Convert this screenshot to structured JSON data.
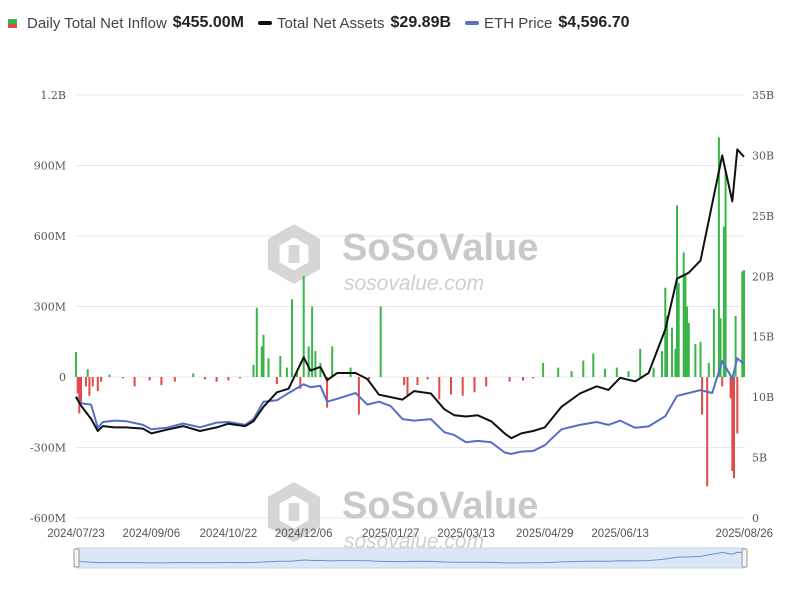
{
  "legend": {
    "inflow_label": "Daily Total Net Inflow",
    "inflow_value": "$455.00M",
    "assets_label": "Total Net Assets",
    "assets_value": "$29.89B",
    "eth_label": "ETH Price",
    "eth_value": "$4,596.70"
  },
  "watermark": {
    "brand": "SoSoValue",
    "site": "sosovalue.com"
  },
  "colors": {
    "inflow_positive": "#39b54a",
    "inflow_negative": "#e04a4a",
    "assets_line": "#111111",
    "eth_line": "#5470c6",
    "navigator_fill": "#dbe7f7",
    "navigator_line": "#6d8fd0",
    "grid": "#e8e8e8"
  },
  "chart_data": {
    "type": "bar+line",
    "x_range": [
      "2024/07/23",
      "2025/08/26"
    ],
    "x_tick_labels": [
      "2024/07/23",
      "2024/09/06",
      "2024/10/22",
      "2024/12/06",
      "2025/01/27",
      "2025/03/13",
      "2025/04/29",
      "2025/06/13",
      "2025/08/26"
    ],
    "left_axis": {
      "unit": "USD",
      "ylim": [
        -600,
        1200
      ],
      "tick_labels": [
        "-600M",
        "-300M",
        "0",
        "300M",
        "600M",
        "900M",
        "1.2B"
      ],
      "tick_values": [
        -600,
        -300,
        0,
        300,
        600,
        900,
        1200
      ]
    },
    "right_axis": {
      "unit": "USD",
      "ylim": [
        0,
        35
      ],
      "tick_labels": [
        "0",
        "5B",
        "10B",
        "15B",
        "20B",
        "25B",
        "30B",
        "35B"
      ],
      "tick_values": [
        0,
        5,
        10,
        15,
        20,
        25,
        30,
        35
      ]
    },
    "inflow_bars": {
      "name": "Daily Total Net Inflow",
      "unit": "M USD",
      "x": [
        "2024/07/23",
        "2024/07/24",
        "2024/07/25",
        "2024/07/26",
        "2024/07/29",
        "2024/07/30",
        "2024/07/31",
        "2024/08/02",
        "2024/08/05",
        "2024/08/07",
        "2024/08/12",
        "2024/08/20",
        "2024/08/27",
        "2024/09/05",
        "2024/09/12",
        "2024/09/20",
        "2024/10/01",
        "2024/10/08",
        "2024/10/15",
        "2024/10/22",
        "2024/10/29",
        "2024/11/06",
        "2024/11/08",
        "2024/11/11",
        "2024/11/12",
        "2024/11/15",
        "2024/11/20",
        "2024/11/22",
        "2024/11/26",
        "2024/11/29",
        "2024/12/02",
        "2024/12/04",
        "2024/12/06",
        "2024/12/09",
        "2024/12/11",
        "2024/12/13",
        "2024/12/16",
        "2024/12/20",
        "2024/12/23",
        "2025/01/03",
        "2025/01/08",
        "2025/01/14",
        "2025/01/21",
        "2025/02/04",
        "2025/02/06",
        "2025/02/12",
        "2025/02/18",
        "2025/02/25",
        "2025/03/04",
        "2025/03/11",
        "2025/03/18",
        "2025/03/25",
        "2025/04/08",
        "2025/04/16",
        "2025/04/22",
        "2025/04/28",
        "2025/05/07",
        "2025/05/15",
        "2025/05/22",
        "2025/05/28",
        "2025/06/04",
        "2025/06/11",
        "2025/06/18",
        "2025/06/25",
        "2025/07/03",
        "2025/07/08",
        "2025/07/10",
        "2025/07/11",
        "2025/07/14",
        "2025/07/16",
        "2025/07/17",
        "2025/07/18",
        "2025/07/21",
        "2025/07/22",
        "2025/07/23",
        "2025/07/24",
        "2025/07/28",
        "2025/07/31",
        "2025/08/01",
        "2025/08/04",
        "2025/08/05",
        "2025/08/08",
        "2025/08/11",
        "2025/08/12",
        "2025/08/13",
        "2025/08/14",
        "2025/08/15",
        "2025/08/18",
        "2025/08/19",
        "2025/08/20",
        "2025/08/21",
        "2025/08/22",
        "2025/08/25",
        "2025/08/26"
      ],
      "values": [
        106,
        -70,
        -155,
        -110,
        -40,
        33,
        -80,
        -40,
        -60,
        -20,
        10,
        -5,
        -40,
        -15,
        -35,
        -20,
        15,
        -10,
        -20,
        -15,
        -5,
        52,
        295,
        130,
        180,
        80,
        -30,
        90,
        40,
        330,
        24,
        -50,
        430,
        130,
        300,
        110,
        60,
        -130,
        130,
        40,
        -160,
        -10,
        300,
        -35,
        -80,
        -35,
        -10,
        -95,
        -75,
        -80,
        -65,
        -40,
        -20,
        -15,
        -5,
        60,
        40,
        25,
        70,
        100,
        35,
        40,
        25,
        120,
        40,
        110,
        380,
        260,
        210,
        120,
        730,
        400,
        530,
        440,
        300,
        230,
        140,
        150,
        -160,
        -465,
        60,
        290,
        1020,
        250,
        -40,
        640,
        880,
        -90,
        -400,
        -430,
        260,
        -240,
        450,
        455
      ]
    },
    "total_net_assets": {
      "name": "Total Net Assets",
      "unit": "B USD",
      "x": [
        "2024/07/23",
        "2024/07/26",
        "2024/08/01",
        "2024/08/05",
        "2024/08/08",
        "2024/08/15",
        "2024/08/22",
        "2024/09/01",
        "2024/09/06",
        "2024/09/15",
        "2024/09/25",
        "2024/10/05",
        "2024/10/15",
        "2024/10/22",
        "2024/11/01",
        "2024/11/06",
        "2024/11/12",
        "2024/11/20",
        "2024/11/27",
        "2024/12/06",
        "2024/12/10",
        "2024/12/16",
        "2024/12/20",
        "2024/12/26",
        "2025/01/06",
        "2025/01/13",
        "2025/01/20",
        "2025/01/27",
        "2025/02/03",
        "2025/02/10",
        "2025/02/20",
        "2025/02/28",
        "2025/03/06",
        "2025/03/13",
        "2025/03/20",
        "2025/03/28",
        "2025/04/05",
        "2025/04/09",
        "2025/04/15",
        "2025/04/22",
        "2025/04/29",
        "2025/05/09",
        "2025/05/20",
        "2025/05/30",
        "2025/06/06",
        "2025/06/13",
        "2025/06/22",
        "2025/06/30",
        "2025/07/10",
        "2025/07/17",
        "2025/07/24",
        "2025/07/31",
        "2025/08/07",
        "2025/08/13",
        "2025/08/19",
        "2025/08/22",
        "2025/08/26"
      ],
      "values": [
        10,
        9.3,
        8.2,
        7.2,
        7.6,
        7.5,
        7.5,
        7.4,
        7.0,
        7.3,
        7.6,
        7.2,
        7.5,
        7.8,
        7.6,
        8.0,
        9.2,
        10.4,
        10.7,
        13.3,
        12.2,
        12.5,
        11.4,
        12.0,
        12.0,
        11.5,
        10.2,
        10.0,
        9.8,
        10.5,
        10.3,
        9.0,
        8.5,
        8.4,
        8.5,
        8.0,
        7.0,
        6.6,
        7.0,
        7.2,
        7.5,
        9.2,
        10.3,
        10.9,
        10.6,
        11.6,
        11.3,
        12.0,
        15.6,
        19.8,
        20.3,
        21.3,
        26.0,
        30.0,
        26.2,
        30.5,
        29.89
      ]
    },
    "eth_price": {
      "name": "ETH Price",
      "unit": "USD",
      "x": [
        "2024/07/23",
        "2024/07/26",
        "2024/08/01",
        "2024/08/05",
        "2024/08/08",
        "2024/08/15",
        "2024/08/22",
        "2024/09/01",
        "2024/09/06",
        "2024/09/15",
        "2024/09/25",
        "2024/10/05",
        "2024/10/15",
        "2024/10/22",
        "2024/11/01",
        "2024/11/06",
        "2024/11/12",
        "2024/11/20",
        "2024/11/27",
        "2024/12/06",
        "2024/12/10",
        "2024/12/16",
        "2024/12/20",
        "2024/12/26",
        "2025/01/06",
        "2025/01/13",
        "2025/01/20",
        "2025/01/27",
        "2025/02/03",
        "2025/02/10",
        "2025/02/20",
        "2025/02/28",
        "2025/03/06",
        "2025/03/13",
        "2025/03/20",
        "2025/03/28",
        "2025/04/05",
        "2025/04/09",
        "2025/04/15",
        "2025/04/22",
        "2025/04/29",
        "2025/05/09",
        "2025/05/20",
        "2025/05/30",
        "2025/06/06",
        "2025/06/13",
        "2025/06/22",
        "2025/06/30",
        "2025/07/10",
        "2025/07/17",
        "2025/07/24",
        "2025/07/31",
        "2025/08/07",
        "2025/08/13",
        "2025/08/19",
        "2025/08/22",
        "2025/08/26"
      ],
      "values": [
        3480,
        3250,
        3200,
        2400,
        2600,
        2650,
        2630,
        2500,
        2350,
        2400,
        2550,
        2420,
        2580,
        2600,
        2500,
        2700,
        3300,
        3350,
        3600,
        3900,
        3800,
        3850,
        3300,
        3400,
        3600,
        3200,
        3300,
        3150,
        2700,
        2650,
        2700,
        2250,
        2150,
        1900,
        1950,
        1900,
        1550,
        1500,
        1580,
        1600,
        1800,
        2350,
        2500,
        2600,
        2500,
        2650,
        2400,
        2450,
        2800,
        3500,
        3600,
        3700,
        3600,
        4700,
        4100,
        4800,
        4596.7
      ]
    },
    "legend_position": "top-left"
  }
}
